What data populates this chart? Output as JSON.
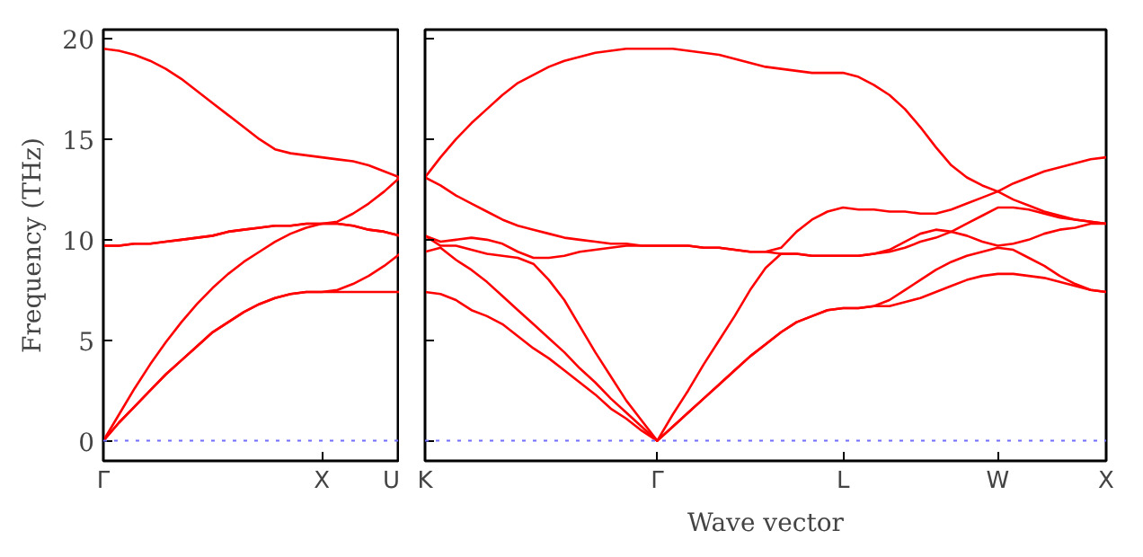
{
  "chart_data": [
    {
      "type": "line",
      "ylabel": "Frequency (THz)",
      "categories": [
        "Γ",
        null,
        null,
        null,
        null,
        null,
        null,
        null,
        null,
        null,
        null,
        null,
        null,
        null,
        "X",
        null,
        null,
        null,
        null,
        "U"
      ],
      "ylim": [
        -1,
        20.45
      ],
      "yticks": [
        0,
        5,
        10,
        15,
        20
      ],
      "grid": false,
      "marker": "none",
      "line_style": "solid",
      "ref_lines": [
        {
          "axis": "y",
          "value": 0,
          "label": null,
          "color": "#6f6fff",
          "line_style": "dotted"
        }
      ],
      "series": [
        {
          "color": "#ff0000",
          "values": [
            0,
            0.9,
            1.7,
            2.5,
            3.3,
            4.0,
            4.7,
            5.4,
            5.9,
            6.4,
            6.8,
            7.1,
            7.3,
            7.4,
            7.4,
            7.4,
            7.4,
            7.4,
            7.4,
            7.4
          ]
        },
        {
          "color": "#ff0000",
          "values": [
            0,
            0.9,
            1.7,
            2.5,
            3.3,
            4.0,
            4.7,
            5.4,
            5.9,
            6.4,
            6.8,
            7.1,
            7.3,
            7.4,
            7.4,
            7.5,
            7.8,
            8.2,
            8.7,
            9.3
          ]
        },
        {
          "color": "#ff0000",
          "values": [
            0,
            1.3,
            2.6,
            3.8,
            4.9,
            5.9,
            6.8,
            7.6,
            8.3,
            8.9,
            9.4,
            9.9,
            10.3,
            10.6,
            10.8,
            10.8,
            10.7,
            10.5,
            10.4,
            10.2
          ]
        },
        {
          "color": "#ff0000",
          "values": [
            9.7,
            9.7,
            9.8,
            9.8,
            9.9,
            10.0,
            10.1,
            10.2,
            10.4,
            10.5,
            10.6,
            10.7,
            10.7,
            10.8,
            10.8,
            10.8,
            10.7,
            10.5,
            10.4,
            10.2
          ]
        },
        {
          "color": "#ff0000",
          "values": [
            9.7,
            9.7,
            9.8,
            9.8,
            9.9,
            10.0,
            10.1,
            10.2,
            10.4,
            10.5,
            10.6,
            10.7,
            10.7,
            10.8,
            10.8,
            10.9,
            11.3,
            11.8,
            12.4,
            13.1
          ]
        },
        {
          "color": "#ff0000",
          "values": [
            19.5,
            19.4,
            19.2,
            18.9,
            18.5,
            18.0,
            17.4,
            16.8,
            16.2,
            15.6,
            15.0,
            14.5,
            14.3,
            14.2,
            14.1,
            14.0,
            13.9,
            13.7,
            13.4,
            13.1
          ]
        }
      ]
    },
    {
      "type": "line",
      "xlabel": "Wave vector",
      "categories": [
        "K",
        null,
        null,
        null,
        null,
        null,
        null,
        null,
        null,
        null,
        null,
        null,
        null,
        null,
        null,
        "Γ",
        null,
        null,
        null,
        null,
        null,
        null,
        null,
        null,
        null,
        null,
        null,
        "L",
        null,
        null,
        null,
        null,
        null,
        null,
        null,
        null,
        null,
        "W",
        null,
        null,
        null,
        null,
        null,
        null,
        "X"
      ],
      "ylim": [
        -1,
        20.45
      ],
      "yticks": [
        0,
        5,
        10,
        15,
        20
      ],
      "tick_labels": "x",
      "grid": false,
      "marker": "none",
      "line_style": "solid",
      "ref_lines": [
        {
          "axis": "y",
          "value": 0,
          "label": null,
          "color": "#6f6fff",
          "line_style": "dotted"
        }
      ],
      "series": [
        {
          "color": "#ff0000",
          "values": [
            7.4,
            7.3,
            7.0,
            6.5,
            6.2,
            5.8,
            5.2,
            4.6,
            4.1,
            3.5,
            2.9,
            2.3,
            1.6,
            1.1,
            0.5,
            0,
            0.7,
            1.4,
            2.1,
            2.8,
            3.5,
            4.2,
            4.8,
            5.4,
            5.9,
            6.2,
            6.5,
            6.6,
            6.6,
            6.7,
            6.7,
            6.9,
            7.1,
            7.4,
            7.7,
            8.0,
            8.2,
            8.3,
            8.3,
            8.2,
            8.1,
            7.9,
            7.7,
            7.5,
            7.4
          ]
        },
        {
          "color": "#ff0000",
          "values": [
            9.4,
            9.6,
            9.0,
            8.5,
            7.9,
            7.2,
            6.5,
            5.8,
            5.1,
            4.4,
            3.6,
            2.9,
            2.1,
            1.4,
            0.7,
            0,
            0.7,
            1.4,
            2.1,
            2.8,
            3.5,
            4.2,
            4.8,
            5.4,
            5.9,
            6.2,
            6.5,
            6.6,
            6.6,
            6.7,
            7.0,
            7.5,
            8.0,
            8.5,
            8.9,
            9.2,
            9.4,
            9.6,
            9.5,
            9.1,
            8.7,
            8.2,
            7.8,
            7.5,
            7.4
          ]
        },
        {
          "color": "#ff0000",
          "values": [
            10.2,
            9.7,
            9.7,
            9.5,
            9.3,
            9.2,
            9.1,
            8.8,
            8.0,
            7.0,
            5.7,
            4.4,
            3.2,
            2.0,
            1.0,
            0,
            1.3,
            2.5,
            3.8,
            5.0,
            6.2,
            7.5,
            8.6,
            9.3,
            9.3,
            9.2,
            9.2,
            9.2,
            9.2,
            9.3,
            9.4,
            9.6,
            9.9,
            10.1,
            10.4,
            10.2,
            9.9,
            9.7,
            9.8,
            10.0,
            10.3,
            10.5,
            10.6,
            10.8,
            10.8
          ]
        },
        {
          "color": "#ff0000",
          "values": [
            10.2,
            9.9,
            10.0,
            10.1,
            10.0,
            9.8,
            9.4,
            9.1,
            9.1,
            9.2,
            9.4,
            9.5,
            9.6,
            9.7,
            9.7,
            9.7,
            9.7,
            9.7,
            9.6,
            9.6,
            9.5,
            9.4,
            9.4,
            9.3,
            9.3,
            9.2,
            9.2,
            9.2,
            9.2,
            9.3,
            9.5,
            9.9,
            10.3,
            10.5,
            10.4,
            10.8,
            11.2,
            11.6,
            11.6,
            11.5,
            11.3,
            11.1,
            11.0,
            10.9,
            10.8
          ]
        },
        {
          "color": "#ff0000",
          "values": [
            13.1,
            12.7,
            12.2,
            11.8,
            11.4,
            11.0,
            10.7,
            10.5,
            10.3,
            10.1,
            10.0,
            9.9,
            9.8,
            9.8,
            9.7,
            9.7,
            9.7,
            9.7,
            9.6,
            9.6,
            9.5,
            9.4,
            9.4,
            9.6,
            10.4,
            11.0,
            11.4,
            11.6,
            11.5,
            11.5,
            11.4,
            11.4,
            11.3,
            11.3,
            11.5,
            11.8,
            12.1,
            12.4,
            12.0,
            11.7,
            11.4,
            11.2,
            11.0,
            10.9,
            10.8
          ]
        },
        {
          "color": "#ff0000",
          "values": [
            13.1,
            14.1,
            15.0,
            15.8,
            16.5,
            17.2,
            17.8,
            18.2,
            18.6,
            18.9,
            19.1,
            19.3,
            19.4,
            19.5,
            19.5,
            19.5,
            19.5,
            19.4,
            19.3,
            19.2,
            19.0,
            18.8,
            18.6,
            18.5,
            18.4,
            18.3,
            18.3,
            18.3,
            18.1,
            17.7,
            17.2,
            16.5,
            15.6,
            14.6,
            13.7,
            13.1,
            12.7,
            12.4,
            12.8,
            13.1,
            13.4,
            13.6,
            13.8,
            14.0,
            14.1
          ]
        }
      ]
    }
  ]
}
